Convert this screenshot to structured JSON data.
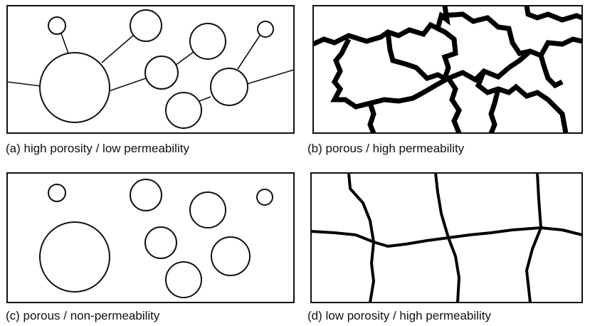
{
  "panels": [
    {
      "caption": "(a) high porosity / low permeability"
    },
    {
      "caption": "(b) porous / high permeability"
    },
    {
      "caption": "(c) porous / non-permeability"
    },
    {
      "caption": "(d) low porosity / high permeability"
    }
  ]
}
